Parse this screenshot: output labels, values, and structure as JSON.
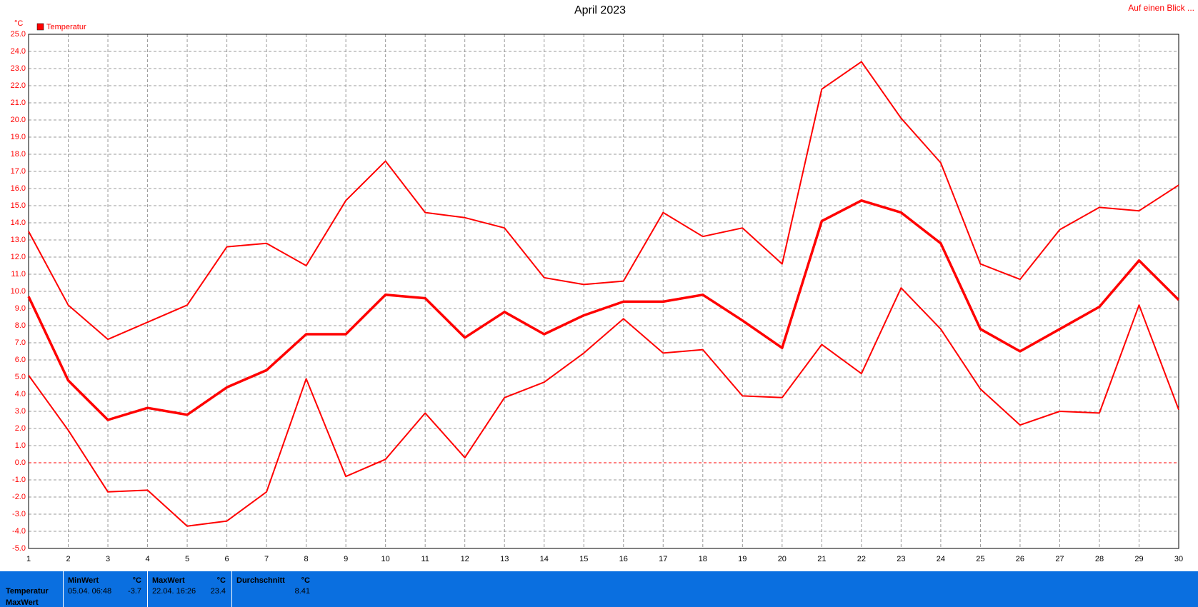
{
  "chart_data": {
    "type": "line",
    "title": "April 2023",
    "link": "Auf einen Blick ...",
    "y_unit": "°C",
    "legend": "Temperatur",
    "x": [
      1,
      2,
      3,
      4,
      5,
      6,
      7,
      8,
      9,
      10,
      11,
      12,
      13,
      14,
      15,
      16,
      17,
      18,
      19,
      20,
      21,
      22,
      23,
      24,
      25,
      26,
      27,
      28,
      29,
      30
    ],
    "xlim": [
      1,
      30
    ],
    "xticks": [
      1,
      2,
      3,
      4,
      5,
      6,
      7,
      8,
      9,
      10,
      11,
      12,
      13,
      14,
      15,
      16,
      17,
      18,
      19,
      20,
      21,
      22,
      23,
      24,
      25,
      26,
      27,
      28,
      29,
      30
    ],
    "ylim": [
      -5,
      25
    ],
    "yticks": [
      {
        "value": -5,
        "label": "-5.0"
      },
      {
        "value": -4,
        "label": "-4.0"
      },
      {
        "value": -3,
        "label": "-3.0"
      },
      {
        "value": -2,
        "label": "-2.0"
      },
      {
        "value": -1,
        "label": "-1.0"
      },
      {
        "value": 0,
        "label": "0.0"
      },
      {
        "value": 1,
        "label": "1.0"
      },
      {
        "value": 2,
        "label": "2.0"
      },
      {
        "value": 3,
        "label": "3.0"
      },
      {
        "value": 4,
        "label": "4.0"
      },
      {
        "value": 5,
        "label": "5.0"
      },
      {
        "value": 6,
        "label": "6.0"
      },
      {
        "value": 7,
        "label": "7.0"
      },
      {
        "value": 8,
        "label": "8.0"
      },
      {
        "value": 9,
        "label": "9.0"
      },
      {
        "value": 10,
        "label": "10.0"
      },
      {
        "value": 11,
        "label": "11.0"
      },
      {
        "value": 12,
        "label": "12.0"
      },
      {
        "value": 13,
        "label": "13.0"
      },
      {
        "value": 14,
        "label": "14.0"
      },
      {
        "value": 15,
        "label": "15.0"
      },
      {
        "value": 16,
        "label": "16.0"
      },
      {
        "value": 17,
        "label": "17.0"
      },
      {
        "value": 18,
        "label": "18.0"
      },
      {
        "value": 19,
        "label": "19.0"
      },
      {
        "value": 20,
        "label": "20.0"
      },
      {
        "value": 21,
        "label": "21.0"
      },
      {
        "value": 22,
        "label": "22.0"
      },
      {
        "value": 23,
        "label": "23.0"
      },
      {
        "value": 24,
        "label": "24.0"
      },
      {
        "value": 25,
        "label": "25.0"
      }
    ],
    "grid": true,
    "series": [
      {
        "color": "#ff0000",
        "width": 2,
        "values": [
          13.5,
          9.2,
          7.2,
          8.2,
          9.2,
          12.6,
          12.8,
          11.5,
          15.3,
          17.6,
          14.6,
          14.3,
          13.7,
          10.8,
          10.4,
          10.6,
          14.6,
          13.2,
          13.7,
          11.6,
          21.8,
          23.4,
          20.1,
          17.5,
          11.6,
          10.7,
          13.6,
          14.9,
          14.7,
          16.2
        ]
      },
      {
        "color": "#ff0000",
        "width": 3.5,
        "values": [
          9.7,
          4.8,
          2.5,
          3.2,
          2.8,
          4.4,
          5.4,
          7.5,
          7.5,
          9.8,
          9.6,
          7.3,
          8.8,
          7.5,
          8.6,
          9.4,
          9.4,
          9.8,
          8.3,
          6.7,
          14.1,
          15.3,
          14.6,
          12.8,
          7.8,
          6.5,
          7.8,
          9.1,
          11.8,
          9.5
        ]
      },
      {
        "color": "#ff0000",
        "width": 2,
        "values": [
          5.1,
          1.9,
          -1.7,
          -1.6,
          -3.7,
          -3.4,
          -1.7,
          4.9,
          -0.8,
          0.2,
          2.9,
          0.3,
          3.8,
          4.7,
          6.4,
          8.4,
          6.4,
          6.6,
          3.9,
          3.8,
          6.9,
          5.2,
          10.2,
          7.8,
          4.3,
          2.2,
          3.0,
          2.9,
          9.2,
          3.1
        ]
      }
    ]
  },
  "summary": {
    "row_labels": [
      "Temperatur",
      "MaxWert"
    ],
    "columns": [
      {
        "header": "MinWert",
        "unit": "°C",
        "time": "05.04.  06:48",
        "value": "-3.7"
      },
      {
        "header": "MaxWert",
        "unit": "°C",
        "time": "22.04.  16:26",
        "value": "23.4"
      },
      {
        "header": "Durchschnitt",
        "unit": "°C",
        "time": "",
        "value": "8.41"
      }
    ]
  }
}
